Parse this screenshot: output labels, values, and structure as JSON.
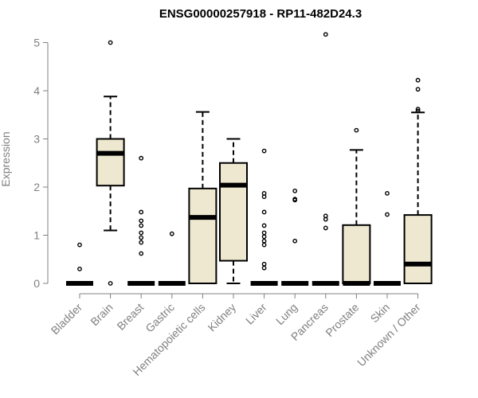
{
  "chart_data": {
    "type": "boxplot",
    "title": "ENSG00000257918 - RP11-482D24.3",
    "ylabel": "Expression",
    "ylim": [
      0,
      5.2
    ],
    "yticks": [
      "0",
      "1",
      "2",
      "3",
      "4",
      "5"
    ],
    "box_fill": "#efe8d0",
    "box_stroke": "#000000",
    "categories": [
      "Bladder",
      "Brain",
      "Breast",
      "Gastric",
      "Hematopoietic cells",
      "Kidney",
      "Liver",
      "Lung",
      "Pancreas",
      "Prostate",
      "Skin",
      "Unknown / Other"
    ],
    "boxes": [
      {
        "q1": 0,
        "median": 0,
        "q3": 0,
        "wlo": 0,
        "whi": 0,
        "outliers": [
          0.8,
          0.3
        ]
      },
      {
        "q1": 2.03,
        "median": 2.7,
        "q3": 3.0,
        "wlo": 1.1,
        "whi": 3.88,
        "outliers": [
          5.0,
          0
        ]
      },
      {
        "q1": 0,
        "median": 0,
        "q3": 0,
        "wlo": 0,
        "whi": 0,
        "outliers": [
          2.6,
          1.48,
          1.3,
          1.2,
          1.05,
          0.95,
          0.85,
          0.62
        ]
      },
      {
        "q1": 0,
        "median": 0,
        "q3": 0,
        "wlo": 0,
        "whi": 0,
        "outliers": [
          1.03
        ]
      },
      {
        "q1": 0,
        "median": 1.37,
        "q3": 1.97,
        "wlo": 0,
        "whi": 3.56,
        "outliers": []
      },
      {
        "q1": 0.47,
        "median": 2.04,
        "q3": 2.5,
        "wlo": 0,
        "whi": 3.0,
        "outliers": []
      },
      {
        "q1": 0,
        "median": 0,
        "q3": 0,
        "wlo": 0,
        "whi": 0,
        "outliers": [
          2.75,
          1.87,
          1.8,
          1.48,
          1.2,
          1.05,
          0.97,
          0.88,
          0.8,
          0.4,
          0.32
        ]
      },
      {
        "q1": 0,
        "median": 0,
        "q3": 0,
        "wlo": 0,
        "whi": 0,
        "outliers": [
          1.92,
          1.75,
          1.73,
          0.88
        ]
      },
      {
        "q1": 0,
        "median": 0,
        "q3": 0,
        "wlo": 0,
        "whi": 0,
        "outliers": [
          5.17,
          1.4,
          1.33,
          1.15
        ]
      },
      {
        "q1": 0,
        "median": 0,
        "q3": 1.21,
        "wlo": 0,
        "whi": 2.77,
        "outliers": [
          3.18
        ]
      },
      {
        "q1": 0,
        "median": 0,
        "q3": 0,
        "wlo": 0,
        "whi": 0,
        "outliers": [
          1.87,
          1.43
        ]
      },
      {
        "q1": 0,
        "median": 0.4,
        "q3": 1.42,
        "wlo": 0,
        "whi": 3.55,
        "outliers": [
          4.22,
          4.03,
          3.62,
          3.58
        ]
      }
    ]
  }
}
